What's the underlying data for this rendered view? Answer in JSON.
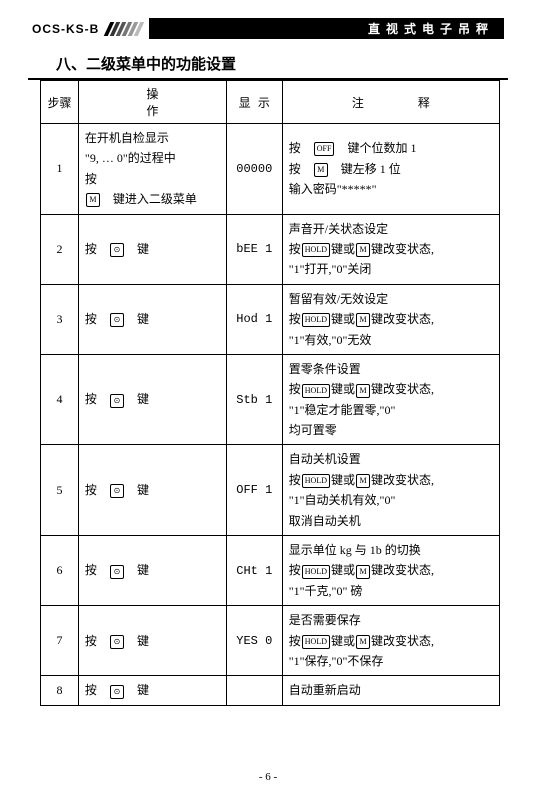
{
  "header": {
    "model": "OCS-KS-B",
    "title": "直视式电子吊秤"
  },
  "section_title": "八、二级菜单中的功能设置",
  "columns": {
    "step": "步骤",
    "op": "操　　作",
    "disp": "显 示",
    "note": "注　　释"
  },
  "keys": {
    "M": "M",
    "zero": "⊙",
    "hold": "HOLD",
    "off": "OFF"
  },
  "rows": [
    {
      "step": "1",
      "op_lines": [
        {
          "t": "在开机自检显示"
        },
        {
          "t": "\"9, … 0\"的过程中"
        },
        {
          "t": "按"
        },
        {
          "k": "M",
          "after": "　键进入二级菜单"
        }
      ],
      "disp": "00000",
      "note_lines": [
        {
          "pre": "按　",
          "k": "OFF",
          "after": "　键个位数加 1"
        },
        {
          "pre": "按　",
          "k": "M",
          "after": "　键左移 1 位"
        },
        {
          "t": "输入密码\"*****\""
        }
      ]
    },
    {
      "step": "2",
      "op_lines": [
        {
          "pre": "按　",
          "k": "⊙",
          "after": "　键"
        }
      ],
      "disp": "bEE 1",
      "note_lines": [
        {
          "t": "声音开/关状态设定"
        },
        {
          "pre": "按",
          "k": "HOLD",
          "mid": "键或",
          "k2": "M",
          "after": "键改变状态,"
        },
        {
          "t": "\"1\"打开,\"0\"关闭"
        }
      ]
    },
    {
      "step": "3",
      "op_lines": [
        {
          "pre": "按　",
          "k": "⊙",
          "after": "　键"
        }
      ],
      "disp": "Hod 1",
      "note_lines": [
        {
          "t": "暂留有效/无效设定"
        },
        {
          "pre": "按",
          "k": "HOLD",
          "mid": "键或",
          "k2": "M",
          "after": "键改变状态,"
        },
        {
          "t": "\"1\"有效,\"0\"无效"
        }
      ]
    },
    {
      "step": "4",
      "op_lines": [
        {
          "pre": "按　",
          "k": "⊙",
          "after": "　键"
        }
      ],
      "disp": "Stb 1",
      "note_lines": [
        {
          "t": "置零条件设置"
        },
        {
          "pre": "按",
          "k": "HOLD",
          "mid": "键或",
          "k2": "M",
          "after": "键改变状态,"
        },
        {
          "t": "\"1\"稳定才能置零,\"0\""
        },
        {
          "t": "均可置零"
        }
      ]
    },
    {
      "step": "5",
      "op_lines": [
        {
          "pre": "按　",
          "k": "⊙",
          "after": "　键"
        }
      ],
      "disp": "OFF 1",
      "note_lines": [
        {
          "t": "自动关机设置"
        },
        {
          "pre": "按",
          "k": "HOLD",
          "mid": "键或",
          "k2": "M",
          "after": "键改变状态,"
        },
        {
          "t": "\"1\"自动关机有效,\"0\""
        },
        {
          "t": "取消自动关机"
        }
      ]
    },
    {
      "step": "6",
      "op_lines": [
        {
          "pre": "按　",
          "k": "⊙",
          "after": "　键"
        }
      ],
      "disp": "CHt 1",
      "note_lines": [
        {
          "t": "显示单位 kg 与 1b 的切换"
        },
        {
          "pre": "按",
          "k": "HOLD",
          "mid": "键或",
          "k2": "M",
          "after": "键改变状态,"
        },
        {
          "t": "\"1\"千克,\"0\" 磅"
        }
      ]
    },
    {
      "step": "7",
      "op_lines": [
        {
          "pre": "按　",
          "k": "⊙",
          "after": "　键"
        }
      ],
      "disp": "YES 0",
      "note_lines": [
        {
          "t": "是否需要保存"
        },
        {
          "pre": "按",
          "k": "HOLD",
          "mid": "键或",
          "k2": "M",
          "after": "键改变状态,"
        },
        {
          "t": "\"1\"保存,\"0\"不保存"
        }
      ]
    },
    {
      "step": "8",
      "op_lines": [
        {
          "pre": "按　",
          "k": "⊙",
          "after": "　键"
        }
      ],
      "disp": "",
      "note_lines": [
        {
          "t": "自动重新启动"
        }
      ]
    }
  ],
  "footer": "- 6 -"
}
